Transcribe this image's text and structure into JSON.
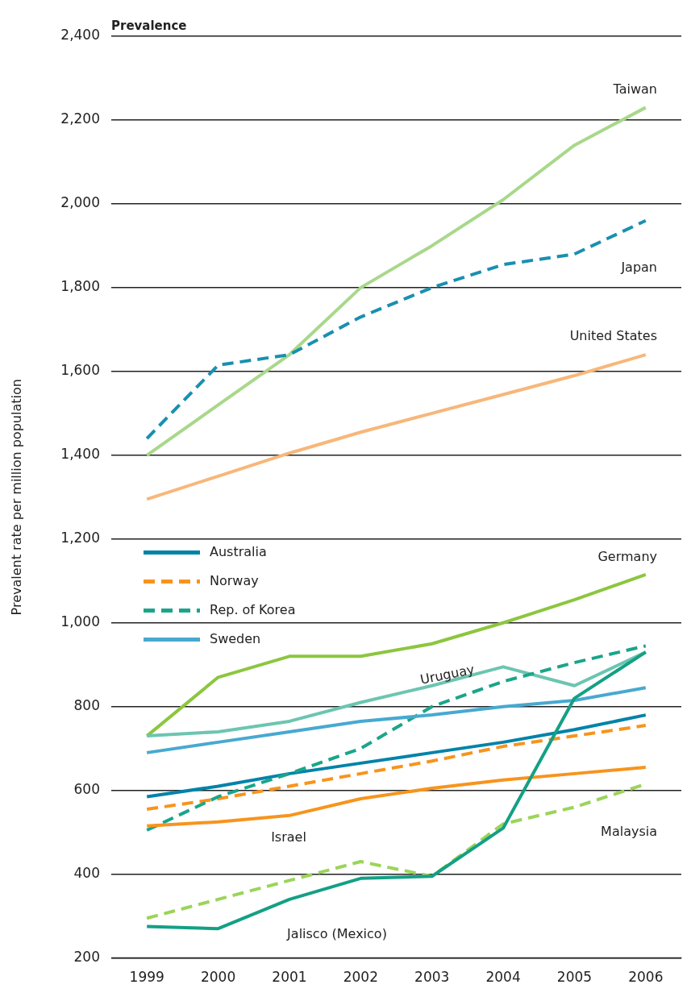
{
  "chart_data": {
    "type": "line",
    "title": "Prevalence",
    "ylabel": "Prevalent rate per million population",
    "categories": [
      "1999",
      "2000",
      "2001",
      "2002",
      "2003",
      "2004",
      "2005",
      "2006"
    ],
    "ylim": [
      200,
      2400
    ],
    "yticks": [
      200,
      400,
      600,
      800,
      {
        "value": 1000,
        "label": "1,000"
      },
      {
        "value": 1200,
        "label": "1,200"
      },
      {
        "value": 1400,
        "label": "1,400"
      },
      {
        "value": 1600,
        "label": "1,600"
      },
      {
        "value": 1800,
        "label": "1,800"
      },
      {
        "value": 2000,
        "label": "2,000"
      },
      {
        "value": 2200,
        "label": "2,200"
      },
      {
        "value": 2400,
        "label": "2,400"
      }
    ],
    "grid": "y",
    "legend": "left",
    "marker": "none",
    "series": [
      {
        "color": "#a8d88a",
        "line_style": "solid",
        "values": [
          1400,
          1520,
          1640,
          1800,
          1900,
          2010,
          2140,
          2230
        ]
      },
      {
        "color": "#1a8fb0",
        "line_style": "dashed",
        "values": [
          1440,
          1615,
          1640,
          1730,
          1800,
          1855,
          1880,
          1960
        ]
      },
      {
        "color": "#f7b77a",
        "line_style": "solid",
        "values": [
          1295,
          1350,
          1405,
          1455,
          1500,
          1545,
          1590,
          1640
        ]
      },
      {
        "color": "#8cc63f",
        "line_style": "solid",
        "values": [
          730,
          870,
          920,
          920,
          950,
          1000,
          1055,
          1115
        ]
      },
      {
        "color": "#6cc5b0",
        "line_style": "solid",
        "values": [
          730,
          740,
          765,
          810,
          850,
          895,
          850,
          930
        ]
      },
      {
        "name": "Australia",
        "color": "#0083a9",
        "line_style": "solid",
        "values": [
          585,
          610,
          640,
          665,
          690,
          715,
          745,
          780
        ]
      },
      {
        "name": "Norway",
        "color": "#f7941d",
        "line_style": "dashed",
        "values": [
          555,
          580,
          610,
          640,
          670,
          705,
          730,
          755
        ]
      },
      {
        "name": "Rep. of Korea",
        "color": "#1aa58a",
        "line_style": "dashed",
        "values": [
          505,
          585,
          640,
          700,
          800,
          860,
          905,
          945
        ]
      },
      {
        "name": "Sweden",
        "color": "#47a9d0",
        "line_style": "solid",
        "values": [
          690,
          715,
          740,
          765,
          780,
          800,
          815,
          845
        ]
      },
      {
        "color": "#f7941d",
        "line_style": "solid",
        "values": [
          515,
          525,
          540,
          580,
          605,
          625,
          640,
          655
        ]
      },
      {
        "color": "#9bd45a",
        "line_style": "dashed",
        "values": [
          295,
          340,
          385,
          430,
          395,
          520,
          560,
          615
        ]
      },
      {
        "color": "#14a085",
        "line_style": "solid",
        "values": [
          275,
          270,
          340,
          390,
          395,
          510,
          820,
          930
        ]
      }
    ],
    "annotations": [
      "Taiwan",
      "Japan",
      "United States",
      "Germany",
      "Uruguay",
      "Israel",
      "Malaysia",
      "Jalisco (Mexico)"
    ]
  }
}
